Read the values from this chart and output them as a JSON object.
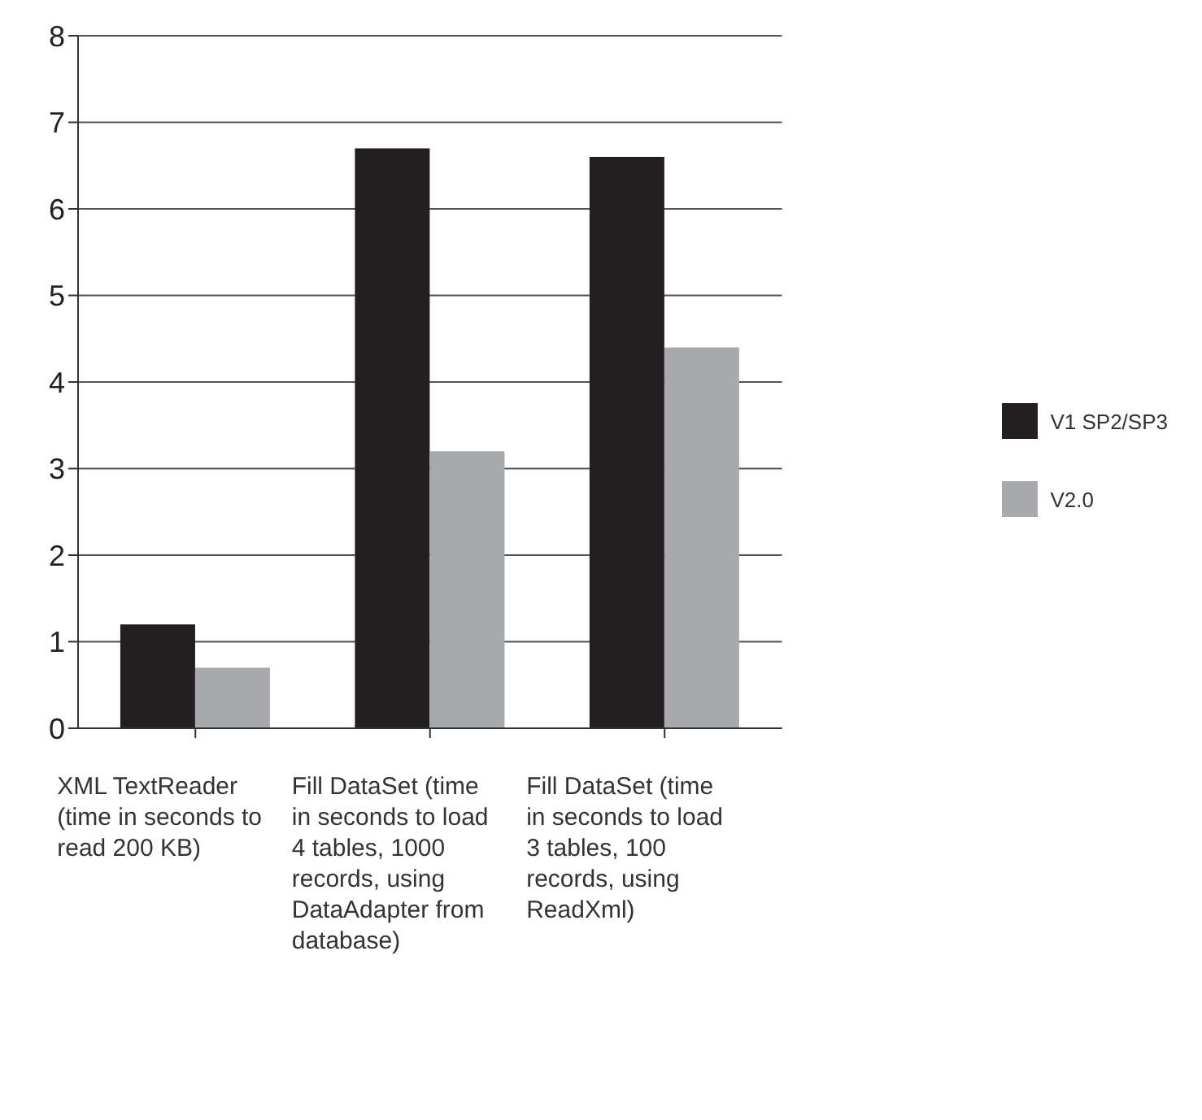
{
  "chart_data": {
    "type": "bar",
    "categories": [
      "XML TextReader (time in seconds to read 200 KB)",
      "Fill DataSet (time in seconds to load 4 tables, 1000 records, using DataAdapter from database)",
      "Fill DataSet (time in seconds to load 3 tables, 100 records, using ReadXml)"
    ],
    "series": [
      {
        "name": "V1 SP2/SP3",
        "color": "#231f20",
        "values": [
          1.2,
          6.7,
          6.6
        ]
      },
      {
        "name": "V2.0",
        "color": "#a7a9ac",
        "values": [
          0.7,
          3.2,
          4.4
        ]
      }
    ],
    "ylim": [
      0,
      8
    ],
    "yticks": [
      0,
      1,
      2,
      3,
      4,
      5,
      6,
      7,
      8
    ],
    "grid": "y",
    "legend": "right"
  }
}
